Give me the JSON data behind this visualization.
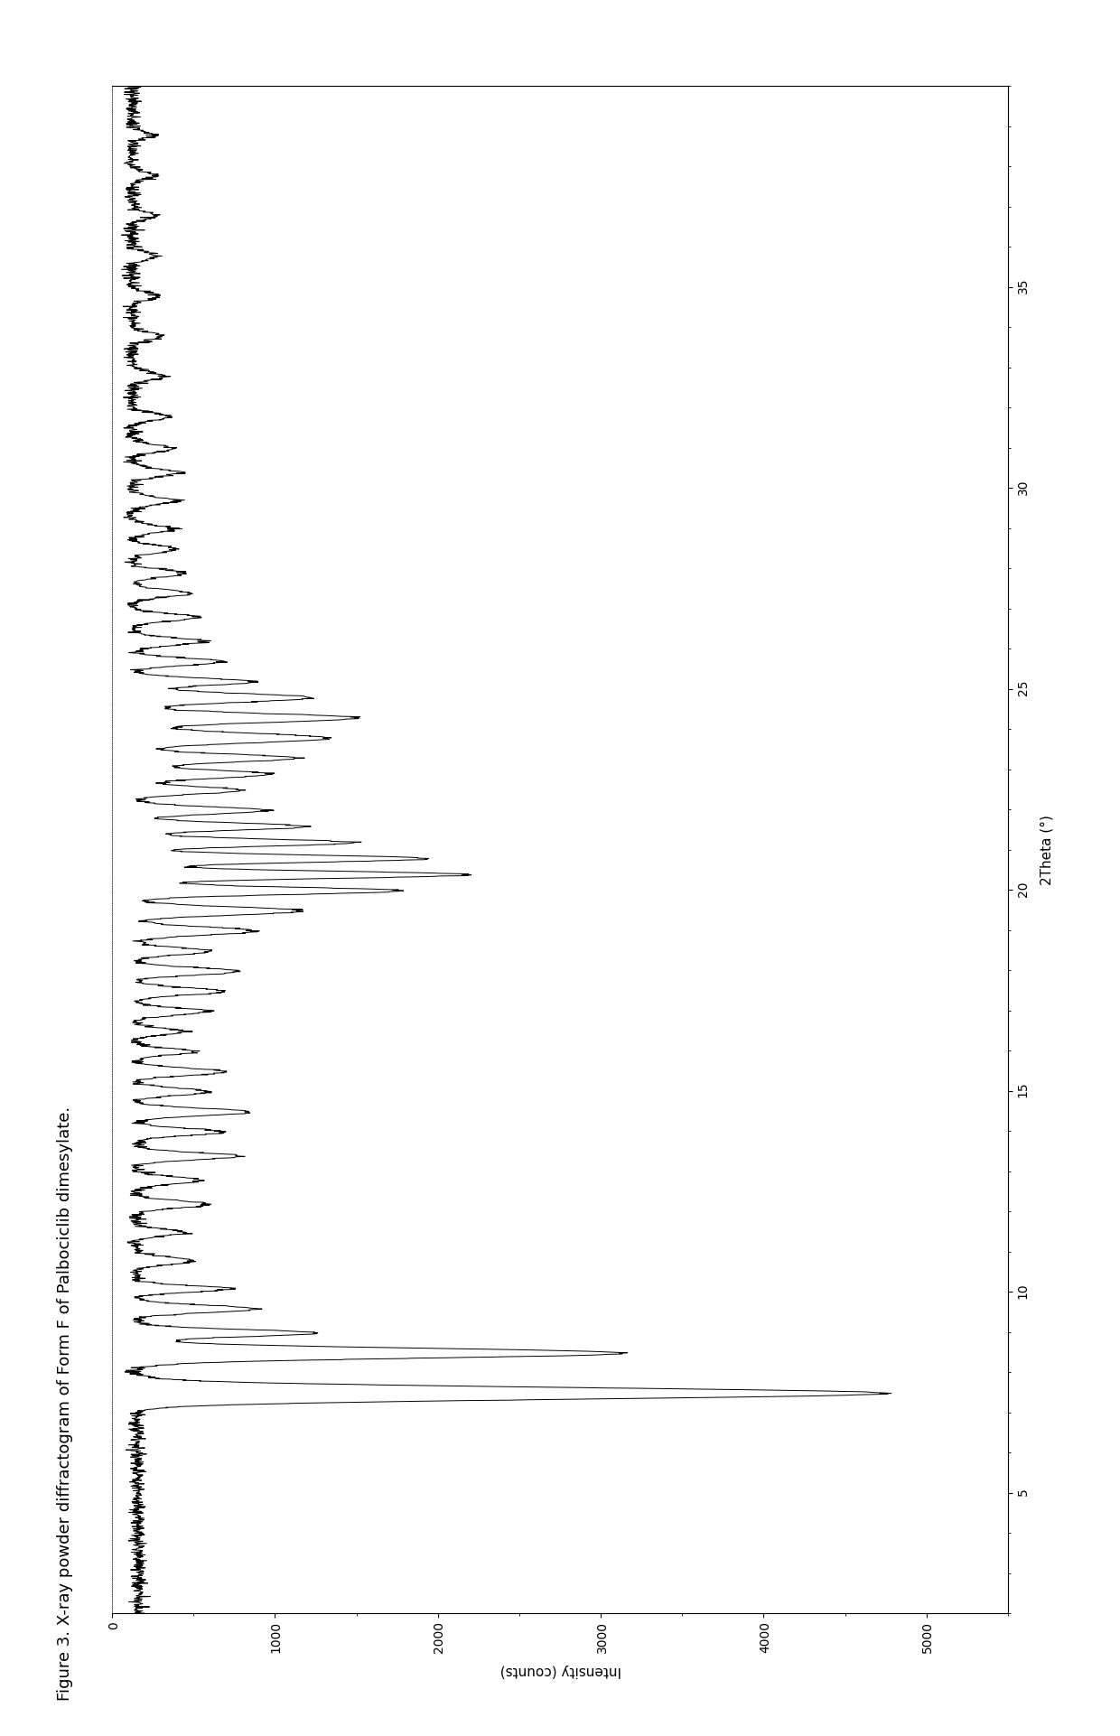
{
  "title": "Figure 3. X-ray powder diffractogram of Form F of Palbociclib dimesylate.",
  "xlabel_2theta": "2Theta (°)",
  "ylabel_intensity": "Intensity (counts)",
  "theta_min": 2.0,
  "theta_max": 40.0,
  "intensity_min": 0,
  "intensity_max": 5500,
  "theta_ticks": [
    5,
    10,
    15,
    20,
    25,
    30,
    35
  ],
  "intensity_ticks": [
    0,
    1000,
    2000,
    3000,
    4000,
    5000
  ],
  "line_color": "#000000",
  "line_width": 0.7,
  "bg_color": "#ffffff",
  "title_fontsize": 13,
  "axis_label_fontsize": 11,
  "tick_fontsize": 10,
  "fig_width": 12.4,
  "fig_height": 19.22
}
